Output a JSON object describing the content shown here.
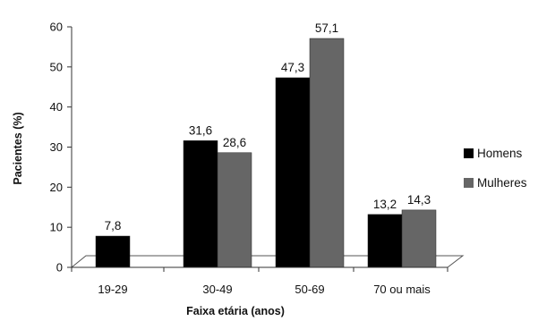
{
  "chart_data": {
    "type": "bar",
    "categories": [
      "19-29",
      "30-49",
      "50-69",
      "70 ou mais"
    ],
    "series": [
      {
        "name": "Homens",
        "values": [
          7.8,
          31.6,
          47.3,
          13.2
        ],
        "labels": [
          "7,8",
          "31,6",
          "47,3",
          "13,2"
        ],
        "color": "#000000"
      },
      {
        "name": "Mulheres",
        "values": [
          null,
          28.6,
          57.1,
          14.3
        ],
        "labels": [
          "",
          "28,6",
          "57,1",
          "14,3"
        ],
        "color": "#666666"
      }
    ],
    "title": "",
    "xlabel": "Faixa etária (anos)",
    "ylabel": "Pacientes (%)",
    "ylim": [
      0,
      60
    ],
    "yticks": [
      "0",
      "10",
      "20",
      "30",
      "40",
      "50",
      "60"
    ],
    "grid": false,
    "legend_position": "right",
    "style_3d_floor": true
  }
}
